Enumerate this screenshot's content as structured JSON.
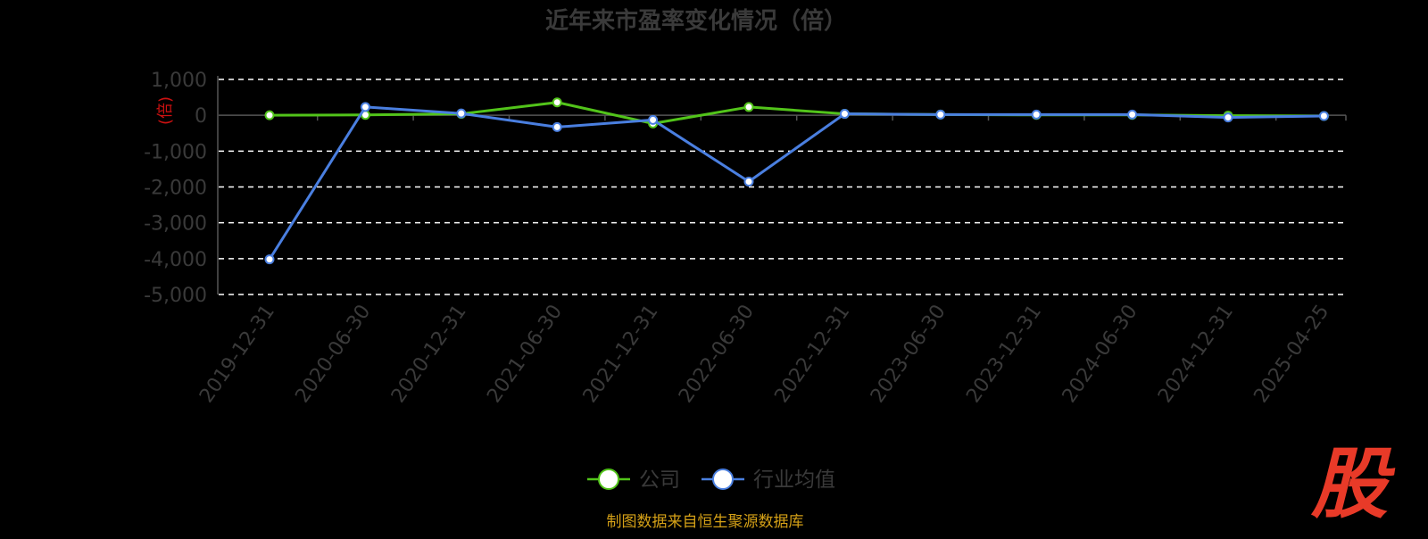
{
  "chart_data": {
    "type": "line",
    "title": "近年来市盈率变化情况（倍）",
    "ylabel": "(倍)",
    "ylim": [
      -5000,
      1000
    ],
    "yticks": [
      1000,
      0,
      -1000,
      -2000,
      -3000,
      -4000,
      -5000
    ],
    "ytick_labels": [
      "1,000",
      "0",
      "-1,000",
      "-2,000",
      "-3,000",
      "-4,000",
      "-5,000"
    ],
    "categories": [
      "2019-12-31",
      "2020-06-30",
      "2020-12-31",
      "2021-06-30",
      "2021-12-31",
      "2022-06-30",
      "2022-12-31",
      "2023-06-30",
      "2023-12-31",
      "2024-06-30",
      "2024-12-31",
      "2025-04-25"
    ],
    "grid": true,
    "legend_position": "bottom",
    "series": [
      {
        "name": "公司",
        "color": "#52c41a",
        "values": [
          0,
          10,
          40,
          360,
          -230,
          230,
          40,
          20,
          10,
          10,
          -10,
          -20
        ]
      },
      {
        "name": "行业均值",
        "color": "#4a7fe0",
        "values": [
          -4020,
          230,
          50,
          -330,
          -130,
          -1850,
          40,
          20,
          20,
          20,
          -60,
          -20
        ]
      }
    ]
  },
  "footer": {
    "source": "制图数据来自恒生聚源数据库",
    "source_color": "#d4a017"
  },
  "watermark": {
    "text": "股",
    "color": "#e83a28"
  }
}
